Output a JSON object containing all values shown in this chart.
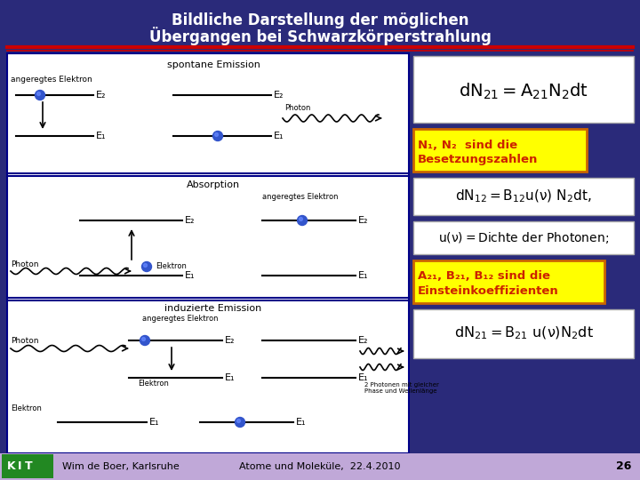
{
  "title_line1": "Bildliche Darstellung der möglichen",
  "title_line2": "Übergangen bei Schwarzkörperstrahlung",
  "bg_color": "#2a2a7a",
  "footer_bg": "#c8b0d8",
  "title_color": "#ffffff",
  "footer_text_left": "Wim de Boer, Karlsruhe",
  "footer_text_mid": "Atome und Moleküle,  22.4.2010",
  "footer_page": "26",
  "section_spontane": "spontane Emission",
  "section_absorption": "Absorption",
  "section_induzierte": "induzierte Emission",
  "label_angeregtes1": "angeregtes Elektron",
  "label_angeregtes2": "angeregtes Elektron",
  "label_angeregtes3": "angeregtes Elektron",
  "label_2photonen": "2 Photonen mit gleicher\nPhase und Wellenlänge"
}
